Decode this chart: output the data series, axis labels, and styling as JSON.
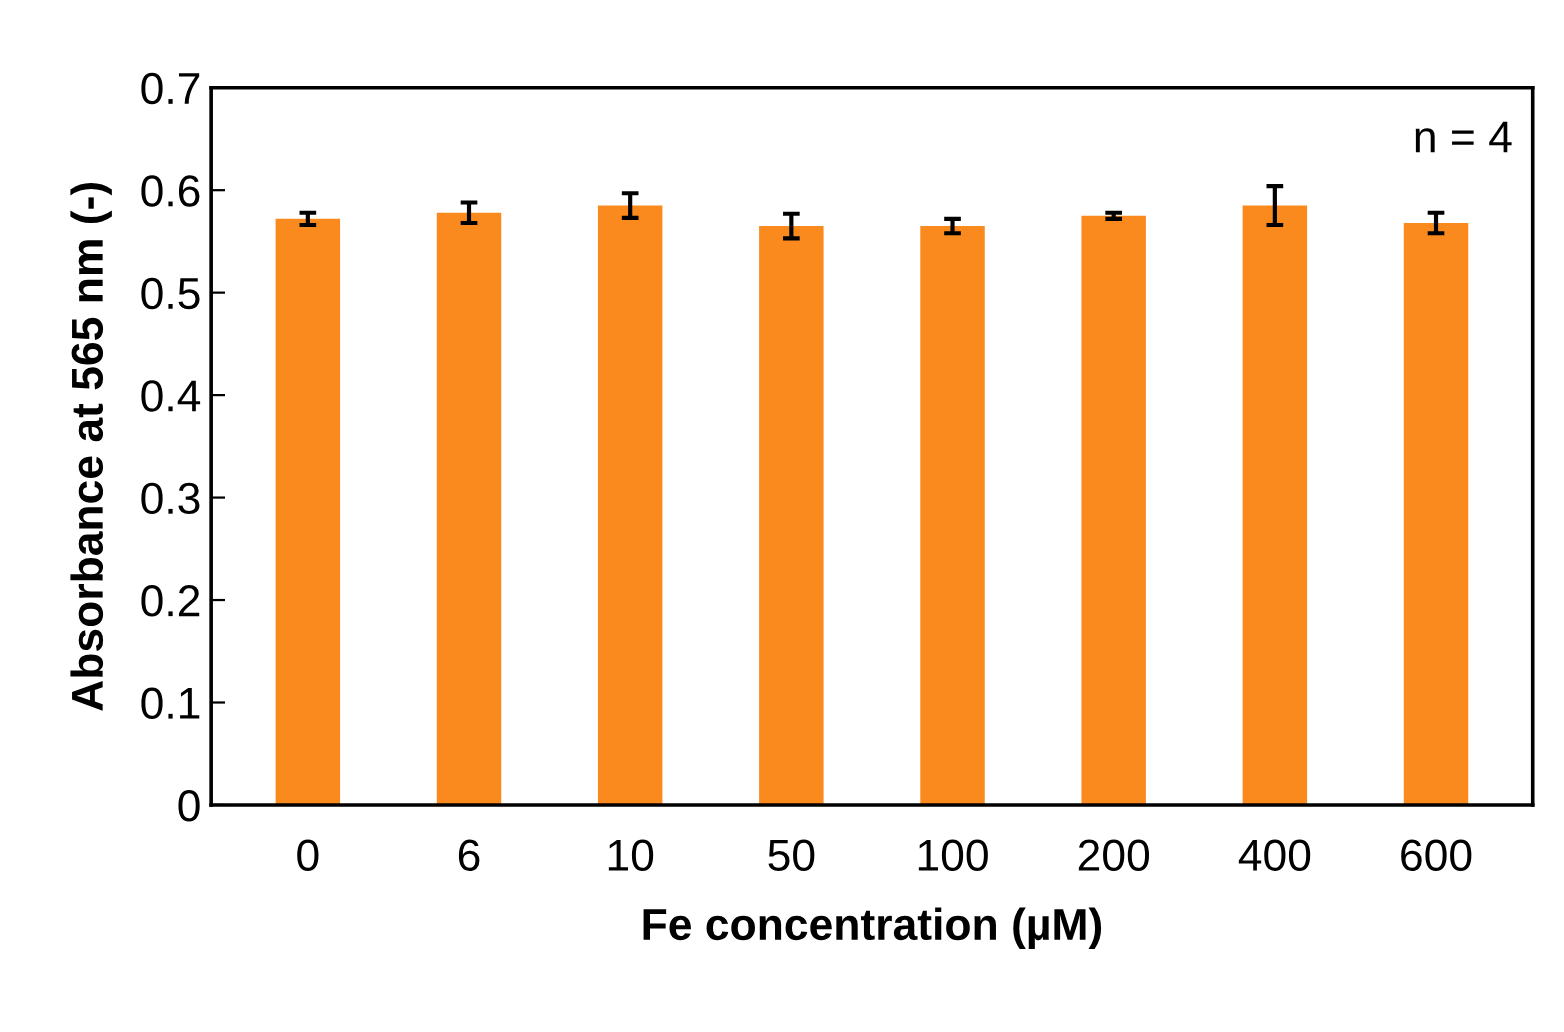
{
  "chart_data": {
    "type": "bar",
    "xlabel": "Fe concentration (µM)",
    "ylabel": "Absorbance at 565 nm (-)",
    "categories": [
      "0",
      "6",
      "10",
      "50",
      "100",
      "200",
      "400",
      "600"
    ],
    "values": [
      0.572,
      0.578,
      0.585,
      0.565,
      0.565,
      0.575,
      0.585,
      0.568
    ],
    "errors": [
      0.006,
      0.01,
      0.012,
      0.012,
      0.007,
      0.003,
      0.019,
      0.01
    ],
    "color": "#fb8a1e",
    "ylim": [
      0,
      0.7
    ],
    "yticks": [
      {
        "value": 0,
        "label": "0"
      },
      {
        "value": 0.1,
        "label": "0.1"
      },
      {
        "value": 0.2,
        "label": "0.2"
      },
      {
        "value": 0.3,
        "label": "0.3"
      },
      {
        "value": 0.4,
        "label": "0.4"
      },
      {
        "value": 0.5,
        "label": "0.5"
      },
      {
        "value": 0.6,
        "label": "0.6"
      },
      {
        "value": 0.7,
        "label": "0.7"
      }
    ],
    "grid": false,
    "annotations": [
      "n = 4"
    ]
  }
}
